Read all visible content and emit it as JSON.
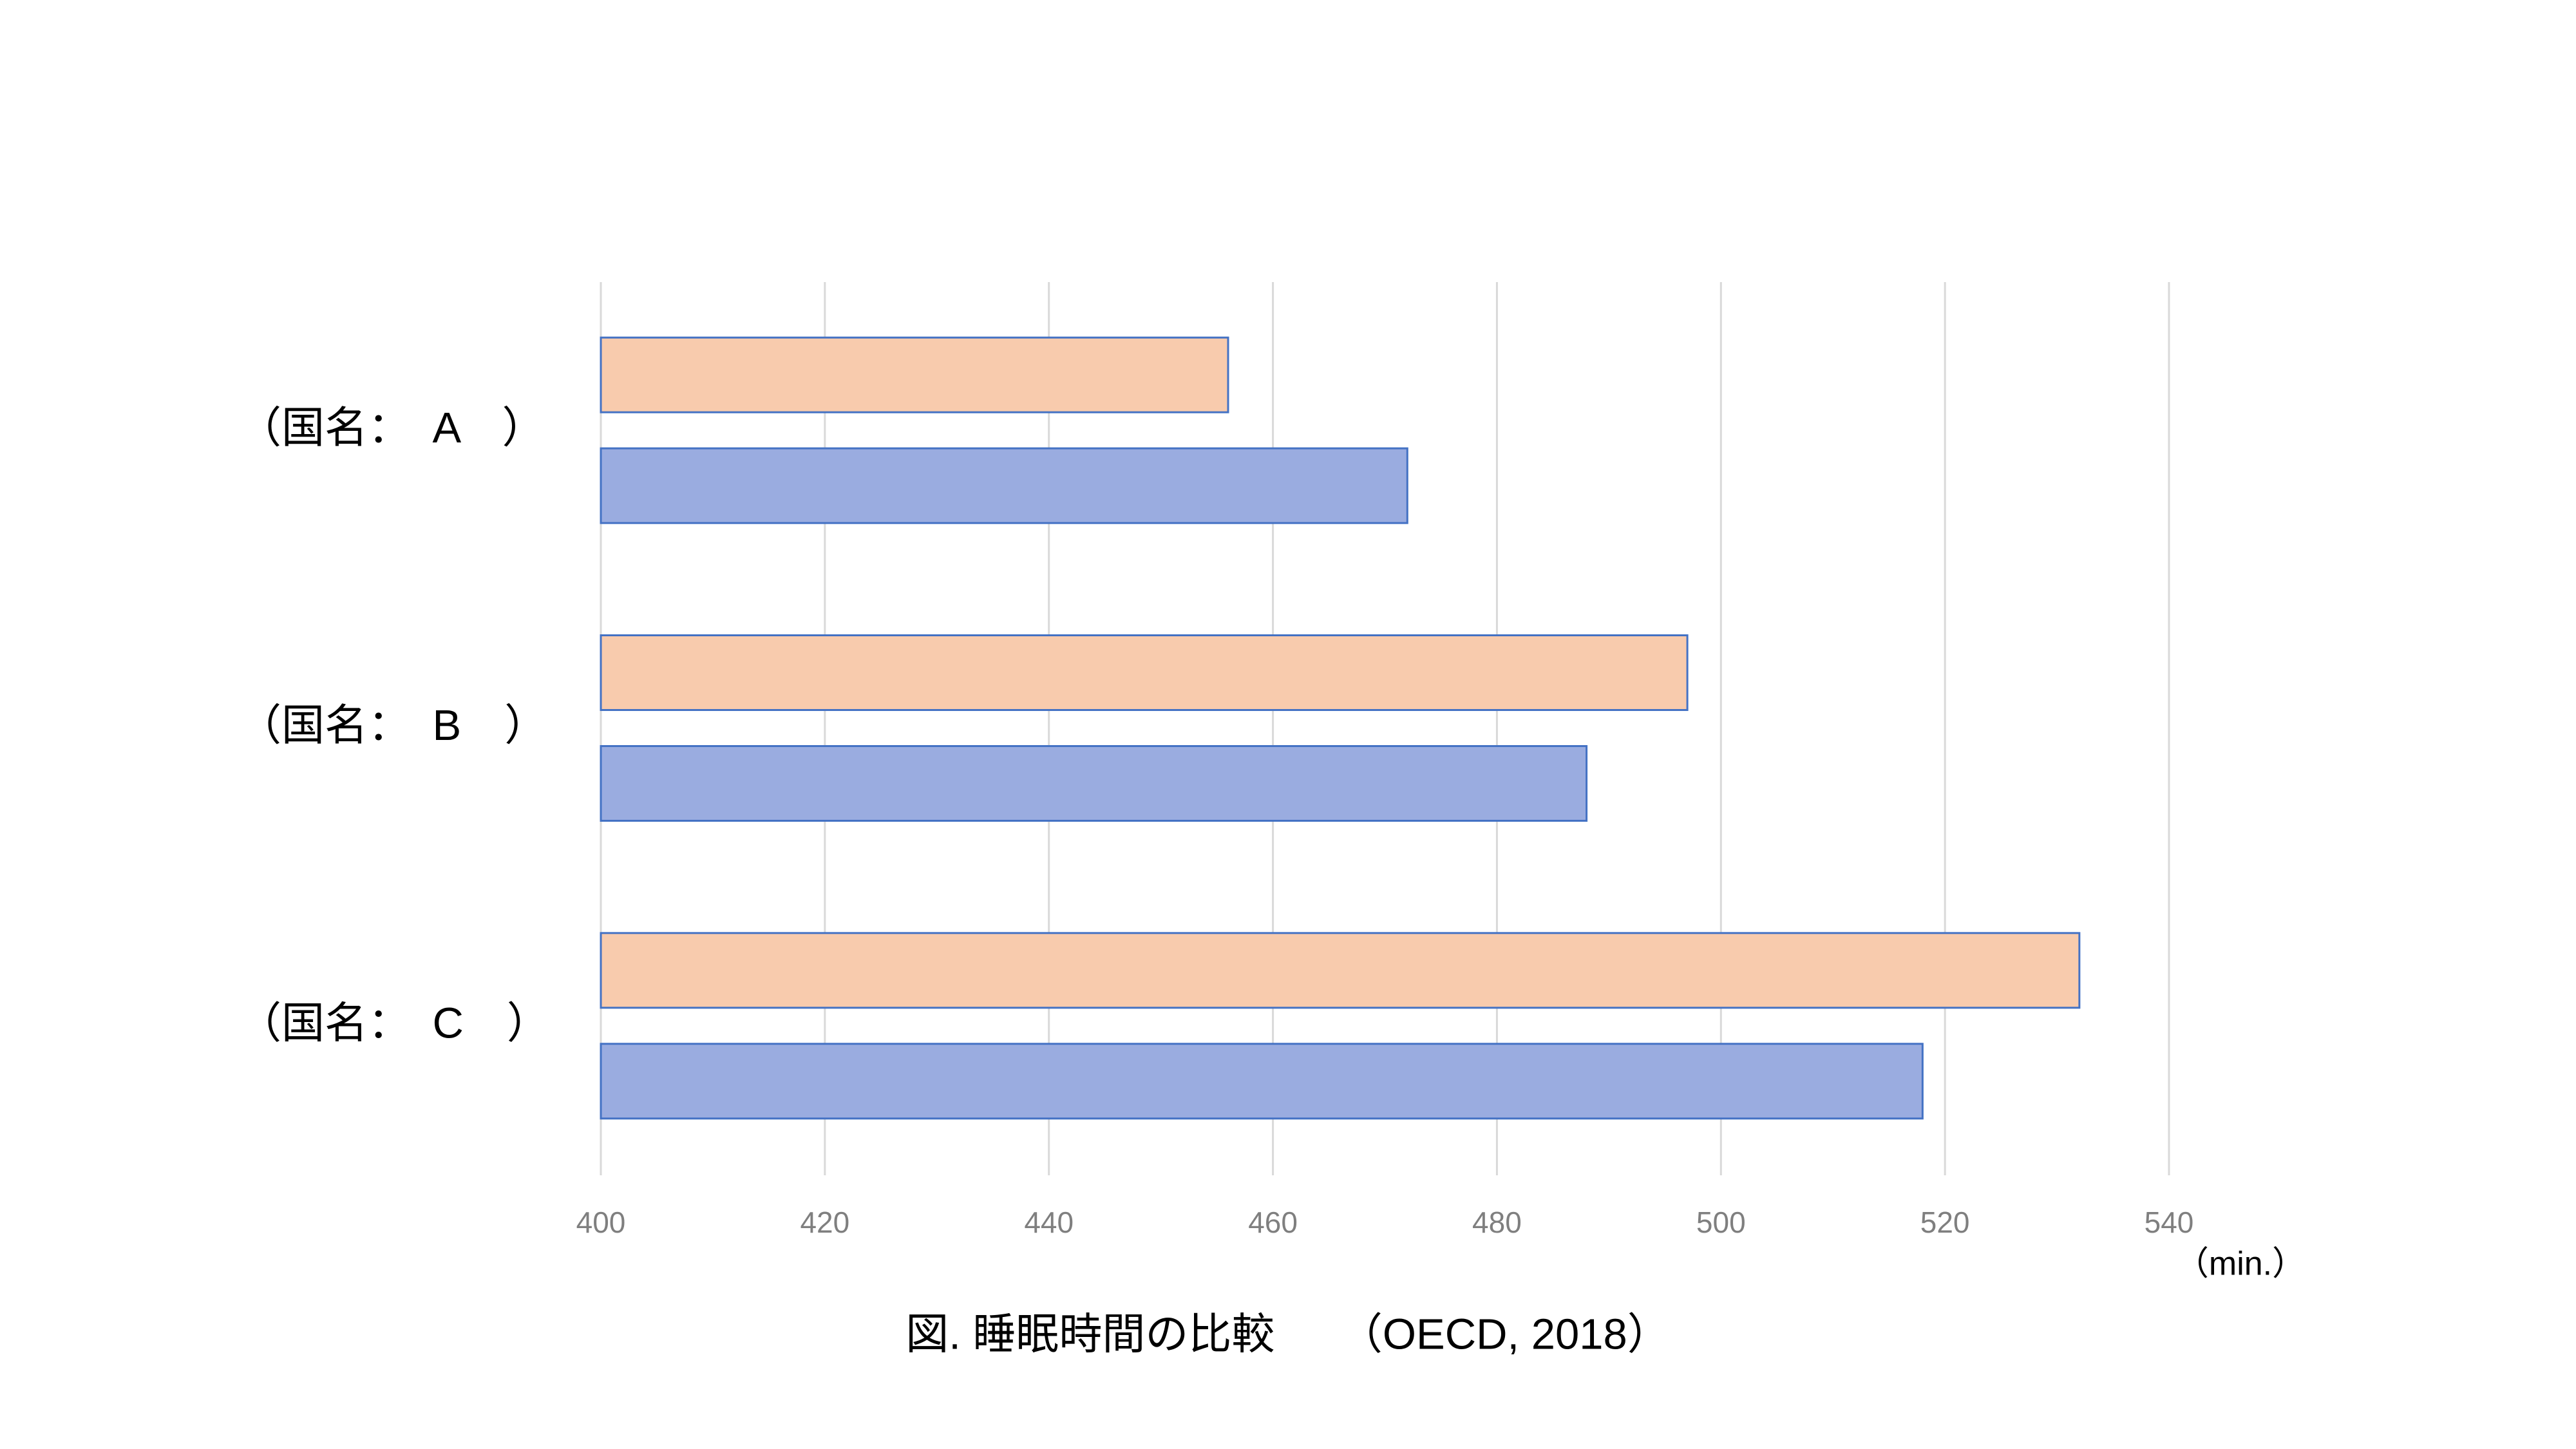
{
  "chart_data": {
    "type": "barh",
    "title": "図. 睡眠時間の比較　　（OECD, 2018）",
    "x_label": "（min.）",
    "categories": [
      "（国名：　A　）",
      "（国名：　B　）",
      "（国名：　C　）"
    ],
    "series": [
      {
        "color": "#f8cbad",
        "values": [
          456,
          497,
          532
        ]
      },
      {
        "color": "#9aace0",
        "values": [
          472,
          488,
          518
        ]
      }
    ],
    "bar_edge_color": "#4472c4",
    "xlim": [
      400,
      540
    ],
    "xticks": [
      400,
      420,
      440,
      460,
      480,
      500,
      520,
      540
    ],
    "grid": true
  }
}
